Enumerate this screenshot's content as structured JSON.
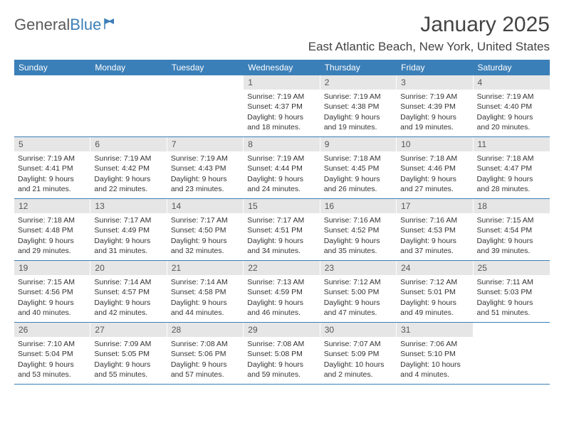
{
  "logo": {
    "text1": "General",
    "text2": "Blue"
  },
  "title": "January 2025",
  "location": "East Atlantic Beach, New York, United States",
  "colors": {
    "header_bg": "#3b7fb8",
    "daynum_bg": "#e6e6e6",
    "text": "#333333",
    "title": "#444444"
  },
  "weekdays": [
    "Sunday",
    "Monday",
    "Tuesday",
    "Wednesday",
    "Thursday",
    "Friday",
    "Saturday"
  ],
  "weeks": [
    [
      {
        "n": "",
        "sunrise": "",
        "sunset": "",
        "day1": "",
        "day2": ""
      },
      {
        "n": "",
        "sunrise": "",
        "sunset": "",
        "day1": "",
        "day2": ""
      },
      {
        "n": "",
        "sunrise": "",
        "sunset": "",
        "day1": "",
        "day2": ""
      },
      {
        "n": "1",
        "sunrise": "Sunrise: 7:19 AM",
        "sunset": "Sunset: 4:37 PM",
        "day1": "Daylight: 9 hours",
        "day2": "and 18 minutes."
      },
      {
        "n": "2",
        "sunrise": "Sunrise: 7:19 AM",
        "sunset": "Sunset: 4:38 PM",
        "day1": "Daylight: 9 hours",
        "day2": "and 19 minutes."
      },
      {
        "n": "3",
        "sunrise": "Sunrise: 7:19 AM",
        "sunset": "Sunset: 4:39 PM",
        "day1": "Daylight: 9 hours",
        "day2": "and 19 minutes."
      },
      {
        "n": "4",
        "sunrise": "Sunrise: 7:19 AM",
        "sunset": "Sunset: 4:40 PM",
        "day1": "Daylight: 9 hours",
        "day2": "and 20 minutes."
      }
    ],
    [
      {
        "n": "5",
        "sunrise": "Sunrise: 7:19 AM",
        "sunset": "Sunset: 4:41 PM",
        "day1": "Daylight: 9 hours",
        "day2": "and 21 minutes."
      },
      {
        "n": "6",
        "sunrise": "Sunrise: 7:19 AM",
        "sunset": "Sunset: 4:42 PM",
        "day1": "Daylight: 9 hours",
        "day2": "and 22 minutes."
      },
      {
        "n": "7",
        "sunrise": "Sunrise: 7:19 AM",
        "sunset": "Sunset: 4:43 PM",
        "day1": "Daylight: 9 hours",
        "day2": "and 23 minutes."
      },
      {
        "n": "8",
        "sunrise": "Sunrise: 7:19 AM",
        "sunset": "Sunset: 4:44 PM",
        "day1": "Daylight: 9 hours",
        "day2": "and 24 minutes."
      },
      {
        "n": "9",
        "sunrise": "Sunrise: 7:18 AM",
        "sunset": "Sunset: 4:45 PM",
        "day1": "Daylight: 9 hours",
        "day2": "and 26 minutes."
      },
      {
        "n": "10",
        "sunrise": "Sunrise: 7:18 AM",
        "sunset": "Sunset: 4:46 PM",
        "day1": "Daylight: 9 hours",
        "day2": "and 27 minutes."
      },
      {
        "n": "11",
        "sunrise": "Sunrise: 7:18 AM",
        "sunset": "Sunset: 4:47 PM",
        "day1": "Daylight: 9 hours",
        "day2": "and 28 minutes."
      }
    ],
    [
      {
        "n": "12",
        "sunrise": "Sunrise: 7:18 AM",
        "sunset": "Sunset: 4:48 PM",
        "day1": "Daylight: 9 hours",
        "day2": "and 29 minutes."
      },
      {
        "n": "13",
        "sunrise": "Sunrise: 7:17 AM",
        "sunset": "Sunset: 4:49 PM",
        "day1": "Daylight: 9 hours",
        "day2": "and 31 minutes."
      },
      {
        "n": "14",
        "sunrise": "Sunrise: 7:17 AM",
        "sunset": "Sunset: 4:50 PM",
        "day1": "Daylight: 9 hours",
        "day2": "and 32 minutes."
      },
      {
        "n": "15",
        "sunrise": "Sunrise: 7:17 AM",
        "sunset": "Sunset: 4:51 PM",
        "day1": "Daylight: 9 hours",
        "day2": "and 34 minutes."
      },
      {
        "n": "16",
        "sunrise": "Sunrise: 7:16 AM",
        "sunset": "Sunset: 4:52 PM",
        "day1": "Daylight: 9 hours",
        "day2": "and 35 minutes."
      },
      {
        "n": "17",
        "sunrise": "Sunrise: 7:16 AM",
        "sunset": "Sunset: 4:53 PM",
        "day1": "Daylight: 9 hours",
        "day2": "and 37 minutes."
      },
      {
        "n": "18",
        "sunrise": "Sunrise: 7:15 AM",
        "sunset": "Sunset: 4:54 PM",
        "day1": "Daylight: 9 hours",
        "day2": "and 39 minutes."
      }
    ],
    [
      {
        "n": "19",
        "sunrise": "Sunrise: 7:15 AM",
        "sunset": "Sunset: 4:56 PM",
        "day1": "Daylight: 9 hours",
        "day2": "and 40 minutes."
      },
      {
        "n": "20",
        "sunrise": "Sunrise: 7:14 AM",
        "sunset": "Sunset: 4:57 PM",
        "day1": "Daylight: 9 hours",
        "day2": "and 42 minutes."
      },
      {
        "n": "21",
        "sunrise": "Sunrise: 7:14 AM",
        "sunset": "Sunset: 4:58 PM",
        "day1": "Daylight: 9 hours",
        "day2": "and 44 minutes."
      },
      {
        "n": "22",
        "sunrise": "Sunrise: 7:13 AM",
        "sunset": "Sunset: 4:59 PM",
        "day1": "Daylight: 9 hours",
        "day2": "and 46 minutes."
      },
      {
        "n": "23",
        "sunrise": "Sunrise: 7:12 AM",
        "sunset": "Sunset: 5:00 PM",
        "day1": "Daylight: 9 hours",
        "day2": "and 47 minutes."
      },
      {
        "n": "24",
        "sunrise": "Sunrise: 7:12 AM",
        "sunset": "Sunset: 5:01 PM",
        "day1": "Daylight: 9 hours",
        "day2": "and 49 minutes."
      },
      {
        "n": "25",
        "sunrise": "Sunrise: 7:11 AM",
        "sunset": "Sunset: 5:03 PM",
        "day1": "Daylight: 9 hours",
        "day2": "and 51 minutes."
      }
    ],
    [
      {
        "n": "26",
        "sunrise": "Sunrise: 7:10 AM",
        "sunset": "Sunset: 5:04 PM",
        "day1": "Daylight: 9 hours",
        "day2": "and 53 minutes."
      },
      {
        "n": "27",
        "sunrise": "Sunrise: 7:09 AM",
        "sunset": "Sunset: 5:05 PM",
        "day1": "Daylight: 9 hours",
        "day2": "and 55 minutes."
      },
      {
        "n": "28",
        "sunrise": "Sunrise: 7:08 AM",
        "sunset": "Sunset: 5:06 PM",
        "day1": "Daylight: 9 hours",
        "day2": "and 57 minutes."
      },
      {
        "n": "29",
        "sunrise": "Sunrise: 7:08 AM",
        "sunset": "Sunset: 5:08 PM",
        "day1": "Daylight: 9 hours",
        "day2": "and 59 minutes."
      },
      {
        "n": "30",
        "sunrise": "Sunrise: 7:07 AM",
        "sunset": "Sunset: 5:09 PM",
        "day1": "Daylight: 10 hours",
        "day2": "and 2 minutes."
      },
      {
        "n": "31",
        "sunrise": "Sunrise: 7:06 AM",
        "sunset": "Sunset: 5:10 PM",
        "day1": "Daylight: 10 hours",
        "day2": "and 4 minutes."
      },
      {
        "n": "",
        "sunrise": "",
        "sunset": "",
        "day1": "",
        "day2": ""
      }
    ]
  ]
}
